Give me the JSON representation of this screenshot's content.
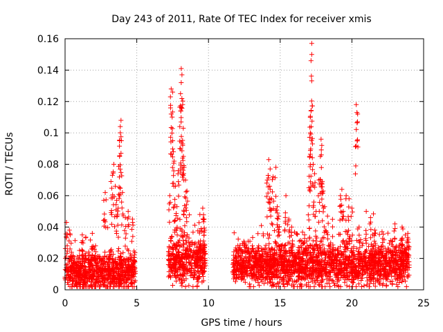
{
  "chart_data": {
    "type": "scatter",
    "title": "Day 243 of 2011, Rate Of TEC Index for receiver xmis",
    "xlabel": "GPS time / hours",
    "ylabel": "ROTI / TECUs",
    "xlim": [
      0,
      25
    ],
    "ylim": [
      0,
      0.16
    ],
    "x_ticks": [
      "0",
      "5",
      "10",
      "15",
      "20",
      "25"
    ],
    "y_ticks": [
      "0",
      "0.02",
      "0.04",
      "0.06",
      "0.08",
      "0.1",
      "0.12",
      "0.14",
      "0.16"
    ],
    "grid": true,
    "marker": "+",
    "color": "#ff0000",
    "segments": [
      {
        "start": 0.0,
        "end": 4.9,
        "base": 0.012,
        "noise": 0.012
      },
      {
        "start": 7.2,
        "end": 9.8,
        "base": 0.018,
        "noise": 0.014
      },
      {
        "start": 11.7,
        "end": 24.0,
        "base": 0.016,
        "noise": 0.013
      }
    ],
    "spikes": [
      {
        "x": 0.1,
        "y": 0.043
      },
      {
        "x": 0.3,
        "y": 0.038
      },
      {
        "x": 1.2,
        "y": 0.035
      },
      {
        "x": 1.9,
        "y": 0.036
      },
      {
        "x": 2.7,
        "y": 0.057
      },
      {
        "x": 2.8,
        "y": 0.062
      },
      {
        "x": 3.2,
        "y": 0.069
      },
      {
        "x": 3.3,
        "y": 0.073
      },
      {
        "x": 3.4,
        "y": 0.08
      },
      {
        "x": 3.5,
        "y": 0.066
      },
      {
        "x": 3.6,
        "y": 0.057
      },
      {
        "x": 3.7,
        "y": 0.052
      },
      {
        "x": 3.8,
        "y": 0.085
      },
      {
        "x": 3.8,
        "y": 0.095
      },
      {
        "x": 3.85,
        "y": 0.104
      },
      {
        "x": 3.9,
        "y": 0.108
      },
      {
        "x": 3.9,
        "y": 0.087
      },
      {
        "x": 4.0,
        "y": 0.062
      },
      {
        "x": 4.2,
        "y": 0.046
      },
      {
        "x": 4.4,
        "y": 0.05
      },
      {
        "x": 4.7,
        "y": 0.045
      },
      {
        "x": 7.3,
        "y": 0.06
      },
      {
        "x": 7.4,
        "y": 0.112
      },
      {
        "x": 7.4,
        "y": 0.128
      },
      {
        "x": 7.5,
        "y": 0.126
      },
      {
        "x": 7.5,
        "y": 0.095
      },
      {
        "x": 7.55,
        "y": 0.088
      },
      {
        "x": 7.6,
        "y": 0.082
      },
      {
        "x": 7.7,
        "y": 0.066
      },
      {
        "x": 7.8,
        "y": 0.053
      },
      {
        "x": 7.9,
        "y": 0.076
      },
      {
        "x": 8.0,
        "y": 0.104
      },
      {
        "x": 8.05,
        "y": 0.125
      },
      {
        "x": 8.1,
        "y": 0.132
      },
      {
        "x": 8.1,
        "y": 0.141
      },
      {
        "x": 8.15,
        "y": 0.137
      },
      {
        "x": 8.2,
        "y": 0.118
      },
      {
        "x": 8.2,
        "y": 0.092
      },
      {
        "x": 8.25,
        "y": 0.085
      },
      {
        "x": 8.3,
        "y": 0.078
      },
      {
        "x": 8.4,
        "y": 0.07
      },
      {
        "x": 8.5,
        "y": 0.063
      },
      {
        "x": 8.3,
        "y": 0.05
      },
      {
        "x": 9.4,
        "y": 0.048
      },
      {
        "x": 9.6,
        "y": 0.052
      },
      {
        "x": 9.7,
        "y": 0.045
      },
      {
        "x": 12.5,
        "y": 0.03
      },
      {
        "x": 13.5,
        "y": 0.028
      },
      {
        "x": 14.1,
        "y": 0.07
      },
      {
        "x": 14.2,
        "y": 0.083
      },
      {
        "x": 14.3,
        "y": 0.077
      },
      {
        "x": 14.3,
        "y": 0.064
      },
      {
        "x": 14.4,
        "y": 0.058
      },
      {
        "x": 14.5,
        "y": 0.072
      },
      {
        "x": 14.7,
        "y": 0.078
      },
      {
        "x": 14.8,
        "y": 0.053
      },
      {
        "x": 14.9,
        "y": 0.047
      },
      {
        "x": 15.4,
        "y": 0.06
      },
      {
        "x": 15.6,
        "y": 0.045
      },
      {
        "x": 15.8,
        "y": 0.04
      },
      {
        "x": 16.7,
        "y": 0.035
      },
      {
        "x": 17.0,
        "y": 0.065
      },
      {
        "x": 17.05,
        "y": 0.085
      },
      {
        "x": 17.1,
        "y": 0.1
      },
      {
        "x": 17.1,
        "y": 0.11
      },
      {
        "x": 17.15,
        "y": 0.114
      },
      {
        "x": 17.15,
        "y": 0.146
      },
      {
        "x": 17.2,
        "y": 0.15
      },
      {
        "x": 17.2,
        "y": 0.157
      },
      {
        "x": 17.25,
        "y": 0.093
      },
      {
        "x": 17.3,
        "y": 0.08
      },
      {
        "x": 17.4,
        "y": 0.074
      },
      {
        "x": 17.5,
        "y": 0.05
      },
      {
        "x": 17.7,
        "y": 0.07
      },
      {
        "x": 17.8,
        "y": 0.085
      },
      {
        "x": 17.85,
        "y": 0.096
      },
      {
        "x": 17.9,
        "y": 0.092
      },
      {
        "x": 17.9,
        "y": 0.068
      },
      {
        "x": 18.0,
        "y": 0.063
      },
      {
        "x": 18.1,
        "y": 0.053
      },
      {
        "x": 18.3,
        "y": 0.047
      },
      {
        "x": 19.2,
        "y": 0.06
      },
      {
        "x": 19.3,
        "y": 0.064
      },
      {
        "x": 19.4,
        "y": 0.05
      },
      {
        "x": 19.6,
        "y": 0.06
      },
      {
        "x": 19.8,
        "y": 0.058
      },
      {
        "x": 20.0,
        "y": 0.052
      },
      {
        "x": 20.3,
        "y": 0.118
      },
      {
        "x": 20.35,
        "y": 0.113
      },
      {
        "x": 20.4,
        "y": 0.112
      },
      {
        "x": 20.5,
        "y": 0.04
      },
      {
        "x": 21.0,
        "y": 0.05
      },
      {
        "x": 21.3,
        "y": 0.046
      },
      {
        "x": 21.6,
        "y": 0.038
      },
      {
        "x": 22.1,
        "y": 0.037
      },
      {
        "x": 23.0,
        "y": 0.042
      },
      {
        "x": 23.5,
        "y": 0.04
      },
      {
        "x": 23.9,
        "y": 0.036
      }
    ]
  }
}
